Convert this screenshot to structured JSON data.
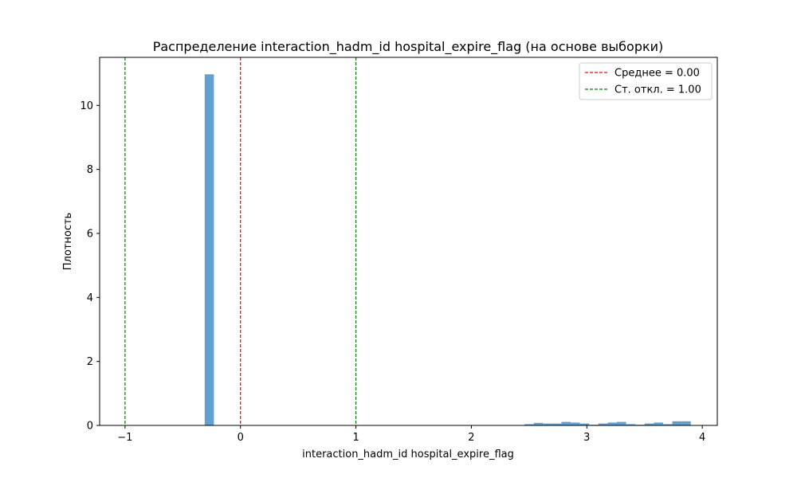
{
  "chart_data": {
    "type": "bar",
    "title": "Распределение interaction_hadm_id hospital_expire_flag (на основе выборки)",
    "xlabel": "interaction_hadm_id hospital_expire_flag",
    "ylabel": "Плотность",
    "xlim": [
      -1.22,
      4.13
    ],
    "ylim": [
      0,
      11.5
    ],
    "xticks": [
      {
        "value": -1,
        "label": "−1"
      },
      {
        "value": 0,
        "label": "0"
      },
      {
        "value": 1,
        "label": "1"
      },
      {
        "value": 2,
        "label": "2"
      },
      {
        "value": 3,
        "label": "3"
      },
      {
        "value": 4,
        "label": "4"
      }
    ],
    "yticks": [
      {
        "value": 0,
        "label": "0"
      },
      {
        "value": 2,
        "label": "2"
      },
      {
        "value": 4,
        "label": "4"
      },
      {
        "value": 6,
        "label": "6"
      },
      {
        "value": 8,
        "label": "8"
      },
      {
        "value": 10,
        "label": "10"
      }
    ],
    "bar_color": "#5a9bd0",
    "bins": [
      {
        "x0": -0.31,
        "x1": -0.23,
        "height": 10.97
      },
      {
        "x0": 2.46,
        "x1": 2.54,
        "height": 0.04
      },
      {
        "x0": 2.54,
        "x1": 2.62,
        "height": 0.08
      },
      {
        "x0": 2.62,
        "x1": 2.7,
        "height": 0.06
      },
      {
        "x0": 2.7,
        "x1": 2.78,
        "height": 0.06
      },
      {
        "x0": 2.78,
        "x1": 2.86,
        "height": 0.11
      },
      {
        "x0": 2.86,
        "x1": 2.94,
        "height": 0.09
      },
      {
        "x0": 2.94,
        "x1": 3.02,
        "height": 0.06
      },
      {
        "x0": 3.02,
        "x1": 3.1,
        "height": 0.02
      },
      {
        "x0": 3.1,
        "x1": 3.18,
        "height": 0.06
      },
      {
        "x0": 3.18,
        "x1": 3.26,
        "height": 0.09
      },
      {
        "x0": 3.26,
        "x1": 3.34,
        "height": 0.11
      },
      {
        "x0": 3.34,
        "x1": 3.42,
        "height": 0.04
      },
      {
        "x0": 3.42,
        "x1": 3.5,
        "height": 0.02
      },
      {
        "x0": 3.5,
        "x1": 3.58,
        "height": 0.06
      },
      {
        "x0": 3.58,
        "x1": 3.66,
        "height": 0.09
      },
      {
        "x0": 3.66,
        "x1": 3.74,
        "height": 0.04
      },
      {
        "x0": 3.74,
        "x1": 3.82,
        "height": 0.13
      },
      {
        "x0": 3.82,
        "x1": 3.9,
        "height": 0.13
      }
    ],
    "vlines": [
      {
        "x": 0,
        "color": "#ff0000",
        "label": "Среднее = 0.00",
        "in_legend": true
      },
      {
        "x": 1,
        "color": "#008000",
        "label": "Ст. откл. = 1.00",
        "in_legend": true
      },
      {
        "x": -1,
        "color": "#008000",
        "label": "",
        "in_legend": false
      }
    ],
    "legend": {
      "placement": "top-right"
    }
  }
}
